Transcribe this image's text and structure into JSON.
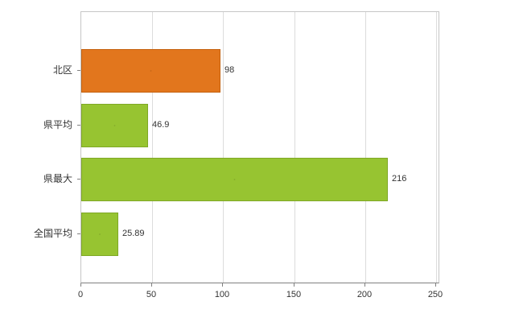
{
  "chart_data": {
    "type": "bar",
    "orientation": "horizontal",
    "title": "",
    "categories": [
      "北区",
      "県平均",
      "県最大",
      "全国平均"
    ],
    "values": [
      98,
      46.9,
      216,
      25.89
    ],
    "value_labels": [
      "98",
      "46.9",
      "216",
      "25.89"
    ],
    "bar_colors": [
      "#e2761d",
      "#97c431",
      "#97c431",
      "#97c431"
    ],
    "bar_border_colors": [
      "#c4620f",
      "#7fa826",
      "#7fa826",
      "#7fa826"
    ],
    "xlim": [
      0,
      250
    ],
    "x_ticks": [
      "0",
      "50",
      "100",
      "150",
      "200",
      "250"
    ],
    "x_tick_values": [
      0,
      50,
      100,
      150,
      200,
      250
    ],
    "grid": true,
    "legend": false,
    "plot_background": "#ffffff",
    "grid_color": "#dcdcdc",
    "axis_color": "#808080"
  }
}
